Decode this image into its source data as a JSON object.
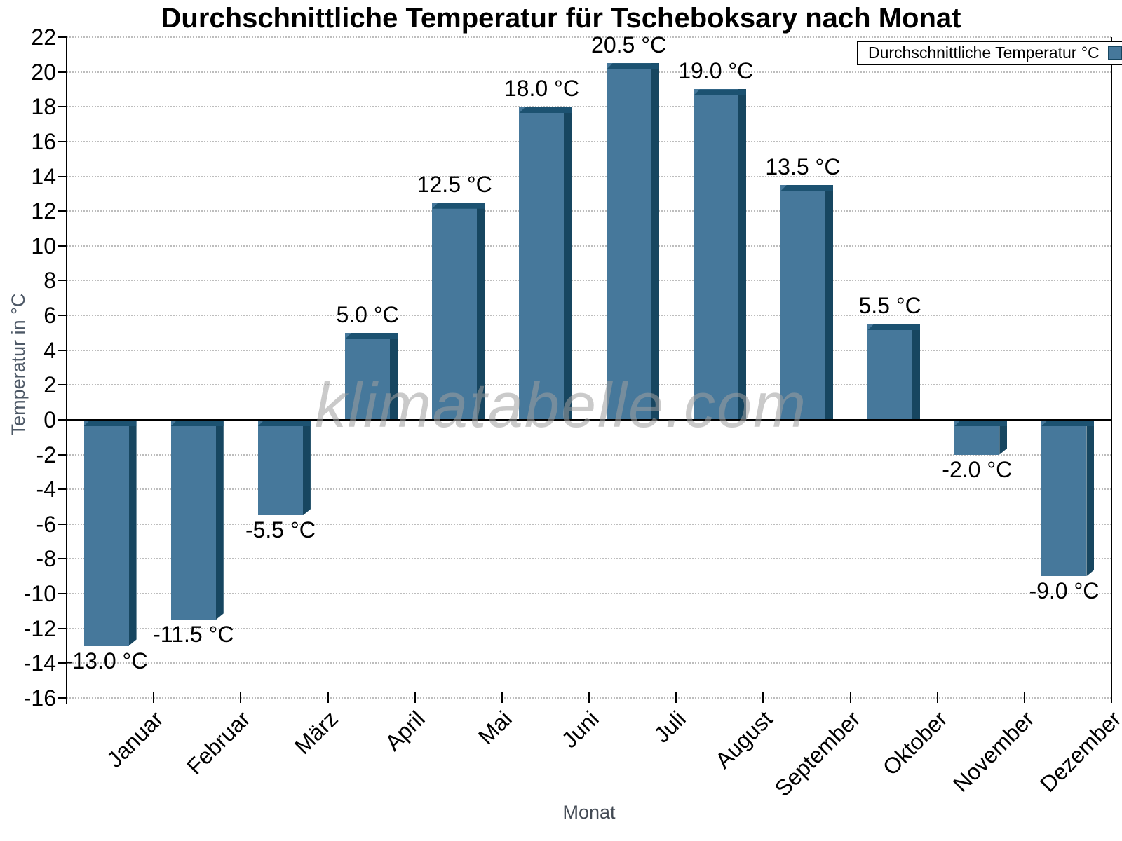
{
  "title": "Durchschnittliche Temperatur für Tscheboksary nach Monat",
  "watermark": "klimatabelle.com",
  "legend": {
    "label": "Durchschnittliche Temperatur °C"
  },
  "axes": {
    "y_title": "Temperatur in °C",
    "x_title": "Monat",
    "y_tick_labels": [
      "22",
      "20",
      "18",
      "16",
      "14",
      "12",
      "10",
      "8",
      "6",
      "4",
      "2",
      "0",
      "-2",
      "-4",
      "-6",
      "-8",
      "-10",
      "-12",
      "-14",
      "-16"
    ]
  },
  "colors": {
    "bar_face": "#46789B",
    "bar_side": "#174660",
    "bar_top": "#1C5271",
    "grid": "#bdbdbd",
    "axis": "#000000",
    "axis_title": "#4d5866",
    "watermark_gray": "#c2c2c2"
  },
  "chart_data": {
    "type": "bar",
    "title": "Durchschnittliche Temperatur für Tscheboksary nach Monat",
    "categories": [
      "Januar",
      "Februar",
      "März",
      "April",
      "Mai",
      "Juni",
      "Juli",
      "August",
      "September",
      "Oktober",
      "November",
      "Dezember"
    ],
    "series": [
      {
        "name": "Durchschnittliche Temperatur °C",
        "values": [
          -13.0,
          -11.5,
          -5.5,
          5.0,
          12.5,
          18.0,
          20.5,
          19.0,
          13.5,
          5.5,
          -2.0,
          -9.0
        ]
      }
    ],
    "value_labels": [
      "-13.0 °C",
      "-11.5 °C",
      "-5.5 °C",
      "5.0 °C",
      "12.5 °C",
      "18.0 °C",
      "20.5 °C",
      "19.0 °C",
      "13.5 °C",
      "5.5 °C",
      "-2.0 °C",
      "-9.0 °C"
    ],
    "xlabel": "Monat",
    "ylabel": "Temperatur in °C",
    "ylim": [
      -16,
      22
    ],
    "y_tick_step": 2,
    "grid": "horizontal-dotted",
    "legend_position": "top-right"
  }
}
